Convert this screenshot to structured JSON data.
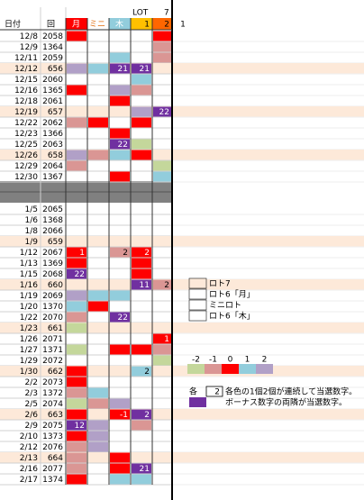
{
  "header": {
    "date": "日付",
    "no": "回",
    "cols": [
      "月",
      "ミニ",
      "木"
    ],
    "lot": "LOT",
    "lot_num": "7",
    "b1": "1",
    "b2": "2",
    "extra": "1"
  },
  "scale": {
    "levels": [
      {
        "label": "-2",
        "color": "#c4d79b"
      },
      {
        "label": "-1",
        "color": "#da9694"
      },
      {
        "label": "0",
        "color": "#ff0000"
      },
      {
        "label": "1",
        "color": "#92cddc"
      },
      {
        "label": "2",
        "color": "#b1a0c7"
      }
    ],
    "bonus_color": "#7030a0",
    "highlight_color": "#fde9d9"
  },
  "legend": [
    "ロト7",
    "ロト6「月」",
    "ミニロト",
    "ロト6「木」"
  ],
  "notes": {
    "each": "各",
    "count": "2",
    "line1": "各色の1個2個が連続して当選数字。",
    "line2": "ボーナス数字の両隣が当選数字。"
  },
  "blocks": [
    [
      {
        "date": "12/8",
        "no": "2058",
        "cells": [
          {
            "level": "0"
          },
          null,
          null,
          null,
          {
            "level": "0"
          }
        ]
      },
      {
        "date": "12/9",
        "no": "1364",
        "cells": [
          null,
          null,
          null,
          null,
          {
            "level": "-1"
          }
        ]
      },
      {
        "date": "12/11",
        "no": "2059",
        "cells": [
          null,
          null,
          {
            "level": "1"
          },
          null,
          {
            "level": "-1"
          }
        ]
      },
      {
        "date": "12/12",
        "no": "656",
        "highlight": true,
        "cells": [
          {
            "level": "2"
          },
          {
            "level": "1"
          },
          {
            "bonus": true,
            "text": "21"
          },
          {
            "bonus": true,
            "text": "21"
          },
          null
        ]
      },
      {
        "date": "12/15",
        "no": "2060",
        "cells": [
          null,
          null,
          null,
          {
            "level": "1"
          },
          null
        ]
      },
      {
        "date": "12/16",
        "no": "1365",
        "cells": [
          {
            "level": "0"
          },
          null,
          {
            "level": "2"
          },
          {
            "level": "-1"
          },
          null
        ]
      },
      {
        "date": "12/18",
        "no": "2061",
        "cells": [
          null,
          null,
          {
            "level": "0"
          },
          null,
          null
        ]
      },
      {
        "date": "12/19",
        "no": "657",
        "highlight": true,
        "cells": [
          null,
          null,
          null,
          {
            "level": "2"
          },
          {
            "bonus": true,
            "text": "22"
          }
        ]
      },
      {
        "date": "12/22",
        "no": "2062",
        "cells": [
          {
            "level": "-1"
          },
          {
            "level": "0"
          },
          null,
          {
            "level": "0"
          },
          null
        ]
      },
      {
        "date": "12/23",
        "no": "1366",
        "cells": [
          null,
          null,
          {
            "level": "0"
          },
          null,
          null
        ]
      },
      {
        "date": "12/25",
        "no": "2063",
        "cells": [
          null,
          null,
          {
            "bonus": true,
            "text": "22"
          },
          {
            "level": "-2"
          },
          null
        ]
      },
      {
        "date": "12/26",
        "no": "658",
        "highlight": true,
        "cells": [
          {
            "level": "2"
          },
          {
            "level": "-1"
          },
          {
            "level": "1"
          },
          {
            "level": "0"
          },
          null
        ]
      },
      {
        "date": "12/29",
        "no": "2064",
        "cells": [
          {
            "level": "-1"
          },
          null,
          null,
          null,
          {
            "level": "-2"
          }
        ]
      },
      {
        "date": "12/30",
        "no": "1367",
        "cells": [
          null,
          null,
          {
            "level": "0"
          },
          null,
          {
            "level": "1"
          }
        ]
      }
    ],
    [
      {
        "date": "1/5",
        "no": "2065",
        "cells": [
          null,
          null,
          null,
          null,
          null
        ]
      },
      {
        "date": "1/6",
        "no": "1368",
        "cells": [
          null,
          null,
          null,
          null,
          null
        ]
      },
      {
        "date": "1/8",
        "no": "2066",
        "cells": [
          null,
          null,
          null,
          null,
          null
        ]
      },
      {
        "date": "1/9",
        "no": "659",
        "highlight": true,
        "cells": [
          null,
          null,
          null,
          null,
          null
        ]
      },
      {
        "date": "1/12",
        "no": "2067",
        "cells": [
          {
            "level": "0",
            "text": "1"
          },
          null,
          {
            "level": "-1",
            "text": "2"
          },
          {
            "level": "0",
            "text": "2"
          },
          null
        ]
      },
      {
        "date": "1/13",
        "no": "1369",
        "cells": [
          {
            "level": "0"
          },
          null,
          null,
          {
            "level": "0"
          },
          null
        ]
      },
      {
        "date": "1/15",
        "no": "2068",
        "cells": [
          {
            "bonus": true,
            "text": "22"
          },
          null,
          null,
          {
            "level": "0"
          },
          null
        ]
      },
      {
        "date": "1/16",
        "no": "660",
        "highlight": true,
        "cells": [
          null,
          null,
          null,
          {
            "bonus": true,
            "text": "11"
          },
          {
            "level": "-1",
            "text": "2"
          }
        ]
      },
      {
        "date": "1/19",
        "no": "2069",
        "cells": [
          {
            "level": "2"
          },
          {
            "level": "1"
          },
          {
            "level": "1"
          },
          null,
          null
        ]
      },
      {
        "date": "1/20",
        "no": "1370",
        "cells": [
          {
            "level": "1"
          },
          {
            "level": "0"
          },
          null,
          null,
          null
        ]
      },
      {
        "date": "1/22",
        "no": "2070",
        "cells": [
          {
            "level": "-1"
          },
          null,
          {
            "bonus": true,
            "text": "22"
          },
          null,
          null
        ]
      },
      {
        "date": "1/23",
        "no": "661",
        "highlight": true,
        "cells": [
          {
            "level": "-2"
          },
          null,
          null,
          null,
          null
        ]
      },
      {
        "date": "1/26",
        "no": "2071",
        "cells": [
          null,
          null,
          null,
          null,
          {
            "level": "0",
            "text": "1"
          }
        ]
      },
      {
        "date": "1/27",
        "no": "1371",
        "cells": [
          {
            "level": "-2"
          },
          null,
          {
            "level": "0"
          },
          {
            "level": "0"
          },
          {
            "level": "-1"
          }
        ]
      },
      {
        "date": "1/29",
        "no": "2072",
        "cells": [
          null,
          null,
          null,
          null,
          {
            "level": "-2"
          }
        ]
      },
      {
        "date": "1/30",
        "no": "662",
        "highlight": true,
        "cells": [
          {
            "level": "0"
          },
          null,
          null,
          {
            "level": "1",
            "text": "2"
          },
          null
        ]
      },
      {
        "date": "2/2",
        "no": "2073",
        "cells": [
          {
            "level": "0"
          },
          null,
          null,
          null,
          null
        ]
      },
      {
        "date": "2/3",
        "no": "1372",
        "cells": [
          {
            "level": "-1"
          },
          {
            "level": "1"
          },
          null,
          null,
          null
        ]
      },
      {
        "date": "2/5",
        "no": "2074",
        "cells": [
          {
            "level": "-2"
          },
          {
            "level": "-1"
          },
          {
            "level": "2"
          },
          null,
          null
        ]
      },
      {
        "date": "2/6",
        "no": "663",
        "highlight": true,
        "cells": [
          {
            "level": "0"
          },
          null,
          {
            "level": "0",
            "text": "-1"
          },
          {
            "bonus": true,
            "text": "2"
          },
          null
        ]
      },
      {
        "date": "2/9",
        "no": "2075",
        "cells": [
          {
            "bonus": true,
            "text": "12"
          },
          {
            "level": "2"
          },
          null,
          {
            "level": "-1"
          },
          null
        ]
      },
      {
        "date": "2/10",
        "no": "1373",
        "cells": [
          {
            "level": "0"
          },
          {
            "level": "2"
          },
          null,
          null,
          null
        ]
      },
      {
        "date": "2/12",
        "no": "2076",
        "cells": [
          {
            "level": "-1"
          },
          {
            "level": "2"
          },
          null,
          null,
          null
        ]
      },
      {
        "date": "2/13",
        "no": "664",
        "highlight": true,
        "cells": [
          {
            "level": "-1"
          },
          null,
          {
            "level": "0"
          },
          null,
          null
        ]
      },
      {
        "date": "2/16",
        "no": "2077",
        "cells": [
          {
            "level": "-1"
          },
          null,
          {
            "level": "0"
          },
          {
            "bonus": true,
            "text": "21"
          },
          null
        ]
      },
      {
        "date": "2/17",
        "no": "1374",
        "cells": [
          {
            "level": "0"
          },
          null,
          {
            "level": "1"
          },
          {
            "level": "1"
          },
          null
        ]
      }
    ]
  ]
}
